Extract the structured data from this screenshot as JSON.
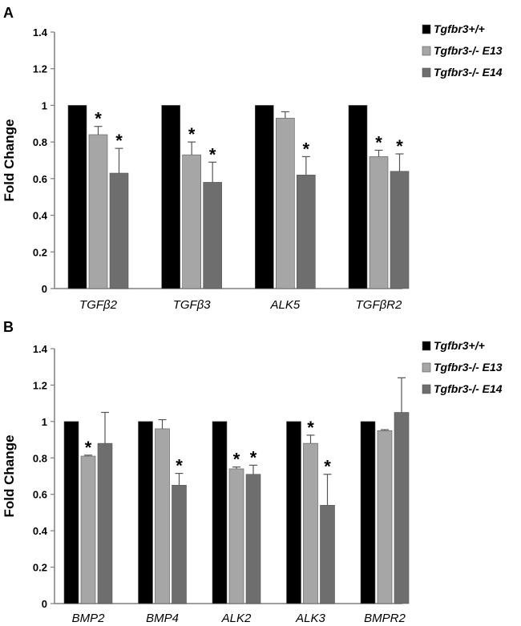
{
  "chart_data": [
    {
      "type": "bar",
      "panel": "A",
      "ylabel": "Fold Change",
      "ylim": [
        0,
        1.4
      ],
      "yticks": [
        "0",
        "0.2",
        "0.4",
        "0.6",
        "0.8",
        "1",
        "1.2",
        "1.4"
      ],
      "categories": [
        "TGFβ2",
        "TGFβ3",
        "ALK5",
        "TGFβR2"
      ],
      "series": [
        {
          "name": "Tgfbr3+/+",
          "color": "#000000",
          "values": [
            1,
            1,
            1,
            1
          ],
          "errors": [
            0,
            0,
            0,
            0
          ],
          "significant": [
            false,
            false,
            false,
            false
          ]
        },
        {
          "name": "Tgfbr3-/- E13",
          "color": "#a6a6a6",
          "values": [
            0.84,
            0.73,
            0.93,
            0.72
          ],
          "errors": [
            0.045,
            0.07,
            0.035,
            0.035
          ],
          "significant": [
            true,
            true,
            false,
            true
          ]
        },
        {
          "name": "Tgfbr3-/- E14",
          "color": "#6e6e6e",
          "values": [
            0.63,
            0.58,
            0.62,
            0.64
          ],
          "errors": [
            0.135,
            0.11,
            0.1,
            0.095
          ],
          "significant": [
            true,
            true,
            true,
            true
          ]
        }
      ],
      "legend_position": "top-right"
    },
    {
      "type": "bar",
      "panel": "B",
      "ylabel": "Fold Change",
      "ylim": [
        0,
        1.4
      ],
      "yticks": [
        "0",
        "0.2",
        "0.4",
        "0.6",
        "0.8",
        "1",
        "1.2",
        "1.4"
      ],
      "categories": [
        "BMP2",
        "BMP4",
        "ALK2",
        "ALK3",
        "BMPR2"
      ],
      "series": [
        {
          "name": "Tgfbr3+/+",
          "color": "#000000",
          "values": [
            1,
            1,
            1,
            1,
            1
          ],
          "errors": [
            0,
            0,
            0,
            0,
            0
          ],
          "significant": [
            false,
            false,
            false,
            false,
            false
          ]
        },
        {
          "name": "Tgfbr3-/- E13",
          "color": "#a6a6a6",
          "values": [
            0.81,
            0.96,
            0.74,
            0.88,
            0.95
          ],
          "errors": [
            0.005,
            0.05,
            0.01,
            0.045,
            0.005
          ],
          "significant": [
            true,
            false,
            true,
            true,
            false
          ]
        },
        {
          "name": "Tgfbr3-/- E14",
          "color": "#6e6e6e",
          "values": [
            0.88,
            0.65,
            0.71,
            0.54,
            1.05
          ],
          "errors": [
            0.17,
            0.065,
            0.05,
            0.17,
            0.19
          ],
          "significant": [
            false,
            true,
            true,
            true,
            false
          ]
        }
      ],
      "legend_position": "top-right"
    }
  ]
}
